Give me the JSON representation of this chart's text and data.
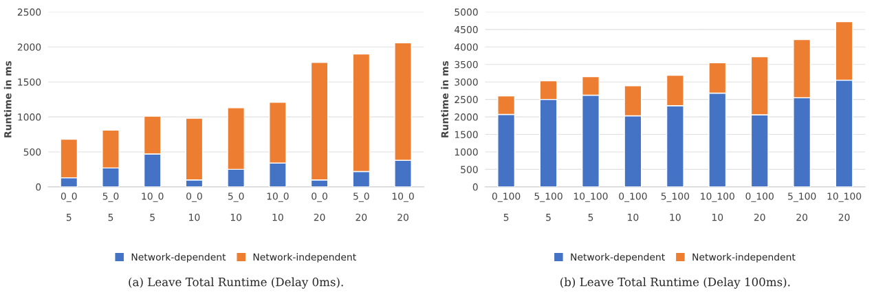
{
  "chart_data": [
    {
      "type": "bar",
      "title": "(a) Leave Total Runtime (Delay 0ms).",
      "ylabel": "Runtime in ms",
      "stacked": true,
      "categories": [
        "0_0\n5",
        "5_0\n5",
        "10_0\n5",
        "0_0\n10",
        "5_0\n10",
        "10_0\n10",
        "0_0\n20",
        "5_0\n20",
        "10_0\n20"
      ],
      "series": [
        {
          "name": "Network-dependent",
          "color": "#4472c4",
          "values": [
            130,
            270,
            470,
            100,
            250,
            340,
            100,
            220,
            380
          ]
        },
        {
          "name": "Network-independent",
          "color": "#ed7d31",
          "values": [
            550,
            540,
            540,
            880,
            880,
            870,
            1680,
            1680,
            1680
          ]
        }
      ],
      "ylim": [
        0,
        2500
      ],
      "yticks": [
        0,
        500,
        1000,
        1500,
        2000,
        2500
      ],
      "grid": "y",
      "legend": "bottom"
    },
    {
      "type": "bar",
      "title": "(b) Leave Total Runtime (Delay 100ms).",
      "ylabel": "Runtime in ms",
      "stacked": true,
      "categories": [
        "0_100\n5",
        "5_100\n5",
        "10_100\n5",
        "0_100\n10",
        "5_100\n10",
        "10_100\n10",
        "0_100\n20",
        "5_100\n20",
        "10_100\n20"
      ],
      "series": [
        {
          "name": "Network-dependent",
          "color": "#4472c4",
          "values": [
            2070,
            2500,
            2620,
            2030,
            2320,
            2680,
            2060,
            2550,
            3050
          ]
        },
        {
          "name": "Network-independent",
          "color": "#ed7d31",
          "values": [
            530,
            530,
            530,
            860,
            870,
            870,
            1660,
            1660,
            1670
          ]
        }
      ],
      "ylim": [
        0,
        5000
      ],
      "yticks": [
        0,
        500,
        1000,
        1500,
        2000,
        2500,
        3000,
        3500,
        4000,
        4500,
        5000
      ],
      "grid": "y",
      "legend": "bottom"
    }
  ]
}
